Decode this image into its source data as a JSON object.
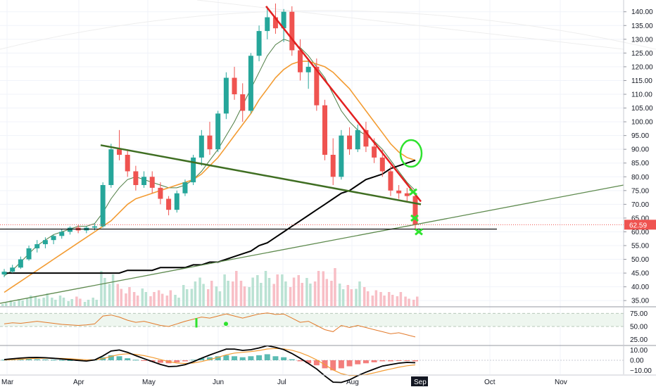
{
  "chart_data": {
    "type": "candlestick",
    "price_axis": {
      "ticks": [
        "140.00",
        "135.00",
        "130.00",
        "125.00",
        "120.00",
        "115.00",
        "110.00",
        "105.00",
        "100.00",
        "95.00",
        "90.00",
        "85.00",
        "80.00",
        "75.00",
        "70.00",
        "65.00",
        "60.00",
        "55.00",
        "50.00",
        "45.00",
        "40.00",
        "35.00"
      ],
      "range": [
        33,
        143
      ],
      "last_price_label": "62.59"
    },
    "rsi_axis": {
      "ticks": [
        "75.00",
        "50.00",
        "25.00"
      ],
      "range": [
        15,
        85
      ],
      "band": [
        50,
        75
      ]
    },
    "macd_axis": {
      "ticks": [
        "10.00",
        "0.00",
        "−10.00"
      ],
      "range": [
        -14,
        14
      ]
    },
    "time_axis": {
      "months": [
        "Mar",
        "Apr",
        "May",
        "Jun",
        "Jul",
        "Aug",
        "Sep",
        "Oct",
        "Nov"
      ],
      "highlighted": "Sep"
    },
    "candles_sample": [
      {
        "o": 44.5,
        "h": 46.5,
        "l": 43.5,
        "c": 45.5
      },
      {
        "o": 45.5,
        "h": 48,
        "l": 45,
        "c": 47
      },
      {
        "o": 47,
        "h": 51,
        "l": 46.5,
        "c": 50
      },
      {
        "o": 50,
        "h": 55,
        "l": 49.5,
        "c": 54
      },
      {
        "o": 54,
        "h": 57,
        "l": 52.5,
        "c": 55.5
      },
      {
        "o": 55.5,
        "h": 58,
        "l": 54,
        "c": 57
      },
      {
        "o": 57,
        "h": 59,
        "l": 55.5,
        "c": 58.5
      },
      {
        "o": 58.5,
        "h": 61,
        "l": 57.5,
        "c": 60
      },
      {
        "o": 60,
        "h": 62,
        "l": 59,
        "c": 61.5
      },
      {
        "o": 61.5,
        "h": 62.5,
        "l": 59.5,
        "c": 60.5
      },
      {
        "o": 60.5,
        "h": 62,
        "l": 59.5,
        "c": 61.5
      },
      {
        "o": 61.5,
        "h": 63,
        "l": 60.5,
        "c": 62
      },
      {
        "o": 62,
        "h": 78,
        "l": 61.5,
        "c": 77
      },
      {
        "o": 77,
        "h": 92,
        "l": 76,
        "c": 90
      },
      {
        "o": 90,
        "h": 97,
        "l": 86,
        "c": 88
      },
      {
        "o": 88,
        "h": 90,
        "l": 80,
        "c": 82
      },
      {
        "o": 82,
        "h": 84,
        "l": 75,
        "c": 77
      },
      {
        "o": 77,
        "h": 82,
        "l": 76,
        "c": 80
      },
      {
        "o": 80,
        "h": 82,
        "l": 74,
        "c": 76
      },
      {
        "o": 76,
        "h": 78,
        "l": 70,
        "c": 72
      },
      {
        "o": 72,
        "h": 73,
        "l": 66,
        "c": 68
      },
      {
        "o": 68,
        "h": 75,
        "l": 67,
        "c": 74
      },
      {
        "o": 74,
        "h": 79,
        "l": 73,
        "c": 78
      },
      {
        "o": 78,
        "h": 88,
        "l": 77,
        "c": 87
      },
      {
        "o": 87,
        "h": 97,
        "l": 84,
        "c": 95
      },
      {
        "o": 95,
        "h": 100,
        "l": 88,
        "c": 90
      },
      {
        "o": 90,
        "h": 104,
        "l": 89,
        "c": 103
      },
      {
        "o": 103,
        "h": 118,
        "l": 101,
        "c": 116
      },
      {
        "o": 116,
        "h": 120,
        "l": 108,
        "c": 110
      },
      {
        "o": 110,
        "h": 114,
        "l": 100,
        "c": 104
      },
      {
        "o": 104,
        "h": 125,
        "l": 103,
        "c": 124
      },
      {
        "o": 124,
        "h": 135,
        "l": 122,
        "c": 133
      },
      {
        "o": 133,
        "h": 142,
        "l": 130,
        "c": 138
      },
      {
        "o": 138,
        "h": 143,
        "l": 132,
        "c": 134
      },
      {
        "o": 134,
        "h": 141,
        "l": 129,
        "c": 140
      },
      {
        "o": 140,
        "h": 142,
        "l": 124,
        "c": 126
      },
      {
        "o": 126,
        "h": 130,
        "l": 115,
        "c": 118
      },
      {
        "o": 118,
        "h": 122,
        "l": 112,
        "c": 120
      },
      {
        "o": 120,
        "h": 123,
        "l": 104,
        "c": 106
      },
      {
        "o": 106,
        "h": 108,
        "l": 86,
        "c": 88
      },
      {
        "o": 88,
        "h": 94,
        "l": 77,
        "c": 80
      },
      {
        "o": 80,
        "h": 97,
        "l": 79,
        "c": 95
      },
      {
        "o": 95,
        "h": 98,
        "l": 88,
        "c": 90
      },
      {
        "o": 90,
        "h": 99,
        "l": 89,
        "c": 97
      },
      {
        "o": 97,
        "h": 100,
        "l": 89,
        "c": 91
      },
      {
        "o": 91,
        "h": 94,
        "l": 85,
        "c": 87
      },
      {
        "o": 87,
        "h": 90,
        "l": 80,
        "c": 82
      },
      {
        "o": 82,
        "h": 84,
        "l": 73,
        "c": 75
      },
      {
        "o": 75,
        "h": 77,
        "l": 72,
        "c": 74
      },
      {
        "o": 74,
        "h": 76,
        "l": 71,
        "c": 73
      },
      {
        "o": 73,
        "h": 74,
        "l": 61,
        "c": 62.59
      }
    ],
    "moving_averages": [
      {
        "color": "#4e7d44",
        "values": [
          44,
          46,
          49,
          52,
          55,
          57,
          59,
          60,
          61,
          62,
          62,
          63,
          67,
          72,
          76,
          79,
          80,
          79,
          78,
          77,
          76,
          76,
          77,
          79,
          82,
          86,
          90,
          95,
          100,
          106,
          112,
          118,
          124,
          128,
          130,
          129,
          127,
          124,
          120,
          116,
          110,
          104,
          100,
          97,
          95,
          93,
          90,
          86,
          82,
          78,
          75
        ]
      },
      {
        "color": "#f39c33",
        "values": [
          38,
          40,
          42,
          44,
          46,
          48,
          50,
          52,
          54,
          56,
          58,
          60,
          62,
          64,
          67,
          70,
          72,
          73,
          74,
          75,
          76,
          77,
          78,
          79,
          81,
          84,
          87,
          91,
          95,
          99,
          103,
          108,
          112,
          116,
          119,
          121,
          122,
          122,
          121,
          120,
          118,
          115,
          112,
          108,
          104,
          100,
          96,
          92,
          89,
          87,
          86
        ]
      },
      {
        "color": "#000000",
        "values": [
          45,
          45,
          45,
          45,
          45,
          45,
          45,
          45,
          45,
          45,
          45,
          45,
          45,
          45,
          45,
          46,
          46,
          46,
          46,
          47,
          47,
          47,
          47,
          48,
          48,
          49,
          49,
          50,
          51,
          52,
          53,
          55,
          56,
          58,
          60,
          62,
          64,
          66,
          68,
          70,
          72,
          74,
          75,
          77,
          79,
          80,
          81,
          83,
          84,
          85,
          86
        ]
      }
    ],
    "trendlines": [
      {
        "color": "#e32020",
        "from": {
          "price": 142
        },
        "to": {
          "price": 71
        }
      },
      {
        "color": "#3f6e22",
        "from": {
          "price": 91.5
        },
        "to": {
          "price": 70
        }
      },
      {
        "color": "#5e8a4e",
        "from": {
          "price": 34
        },
        "to": {
          "price": 77
        }
      },
      {
        "color": "#000000",
        "from": {
          "price": 61
        },
        "to": {
          "price": 61
        }
      }
    ],
    "rsi_values": [
      55,
      57,
      56,
      58,
      60,
      58,
      56,
      54,
      53,
      52,
      53,
      55,
      70,
      72,
      68,
      62,
      58,
      60,
      56,
      52,
      50,
      55,
      60,
      64,
      68,
      66,
      70,
      74,
      70,
      66,
      70,
      74,
      76,
      73,
      74,
      66,
      58,
      60,
      52,
      44,
      40,
      52,
      48,
      52,
      48,
      44,
      40,
      36,
      38,
      34,
      30
    ],
    "macd_hist": [
      0.5,
      0.8,
      1,
      1.2,
      1,
      0.8,
      0.5,
      0.2,
      0,
      -0.3,
      -0.5,
      0.5,
      3,
      5,
      4,
      2,
      0.5,
      -0.5,
      -1.5,
      -2.5,
      -3,
      -2,
      -1,
      0.5,
      2,
      3,
      4,
      5,
      4,
      3,
      4,
      5,
      6,
      4,
      3,
      1,
      -1,
      -3,
      -5,
      -8,
      -10,
      -8,
      -6,
      -4,
      -3,
      -2,
      -1,
      -1,
      -0.5,
      -0.5,
      -1
    ],
    "volume": [
      1,
      2,
      2,
      3,
      3,
      4,
      3,
      3,
      2,
      3,
      2,
      3,
      10,
      9,
      7,
      6,
      5,
      5,
      4,
      5,
      5,
      4,
      6,
      7,
      9,
      8,
      7,
      9,
      10,
      8,
      9,
      11,
      10,
      9,
      10,
      9,
      11,
      8,
      10,
      11,
      12,
      8,
      6,
      7,
      6,
      5,
      5,
      4,
      4,
      3,
      3
    ],
    "annotations": [
      {
        "type": "x-marker",
        "color": "#2ee22e",
        "price": 74.5
      },
      {
        "type": "x-marker",
        "color": "#2ee22e",
        "price": 65
      },
      {
        "type": "x-marker",
        "color": "#2ee22e",
        "price": 60
      },
      {
        "type": "circle",
        "color": "#2ee22e",
        "price": 88.5
      }
    ]
  }
}
